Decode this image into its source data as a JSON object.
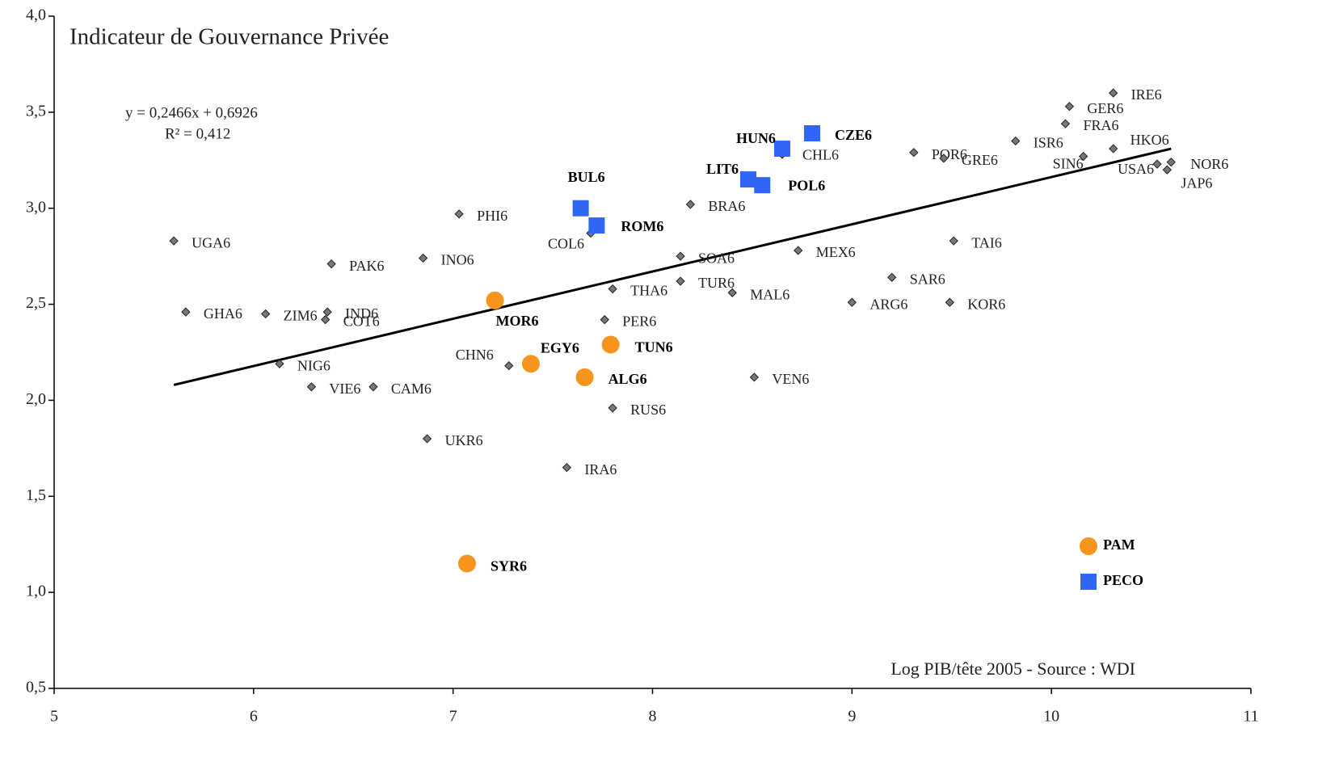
{
  "chart_data": {
    "type": "scatter",
    "title": "Indicateur de Gouvernance Privée",
    "x_label": "Log PIB/tête 2005 - Source : WDI",
    "annotations": [
      "y = 0,2466x + 0,6926",
      "R² = 0,412"
    ],
    "xlim": [
      5,
      11
    ],
    "xticks": [
      5,
      6,
      7,
      8,
      9,
      10,
      11
    ],
    "ylim": [
      0.5,
      4.0
    ],
    "yticks": [
      {
        "value": 0.5,
        "label": "0,5"
      },
      {
        "value": 1.0,
        "label": "1,0"
      },
      {
        "value": 1.5,
        "label": "1,5"
      },
      {
        "value": 2.0,
        "label": "2,0"
      },
      {
        "value": 2.5,
        "label": "2,5"
      },
      {
        "value": 3.0,
        "label": "3,0"
      },
      {
        "value": 3.5,
        "label": "3,5"
      },
      {
        "value": 4.0,
        "label": "4,0"
      }
    ],
    "legend": "lower right",
    "trendline": {
      "color": "#000000",
      "x": [
        5.6,
        10.6
      ],
      "y": [
        2.08,
        3.31
      ]
    },
    "series": [
      {
        "marker": "diamond",
        "color": "#777777",
        "labels": [
          "UGA6",
          "GHA6",
          "ZIM6",
          "IND6",
          "COT6",
          "PAK6",
          "INO6",
          "PHI6",
          "NIG6",
          "VIE6",
          "CAM6",
          "UKR6",
          "CHN6",
          "IRA6",
          "COL6",
          "THA6",
          "PER6",
          "RUS6",
          "SOA6",
          "TUR6",
          "BRA6",
          "MAL6",
          "VEN6",
          "MEX6",
          "CHL6",
          "ARG6",
          "SAR6",
          "KOR6",
          "TAI6",
          "POR6",
          "GRE6",
          "ISR6",
          "FRA6",
          "GER6",
          "IRE6",
          "HKO6",
          "SIN6",
          "USA6",
          "JAP6",
          "NOR6"
        ],
        "x": [
          5.6,
          5.66,
          6.06,
          6.37,
          6.36,
          6.39,
          6.85,
          7.03,
          6.13,
          6.29,
          6.6,
          6.87,
          7.28,
          7.57,
          7.69,
          7.8,
          7.76,
          7.8,
          8.14,
          8.14,
          8.19,
          8.4,
          8.51,
          8.73,
          8.65,
          9.0,
          9.2,
          9.49,
          9.51,
          9.31,
          9.46,
          9.82,
          10.07,
          10.09,
          10.31,
          10.31,
          10.16,
          10.53,
          10.58,
          10.6
        ],
        "values": [
          2.83,
          2.46,
          2.45,
          2.46,
          2.42,
          2.71,
          2.74,
          2.97,
          2.19,
          2.07,
          2.07,
          1.8,
          2.18,
          1.65,
          2.87,
          2.58,
          2.42,
          1.96,
          2.75,
          2.62,
          3.02,
          2.56,
          2.12,
          2.78,
          3.28,
          2.51,
          2.64,
          2.51,
          2.83,
          3.29,
          3.26,
          3.35,
          3.44,
          3.53,
          3.6,
          3.31,
          3.27,
          3.23,
          3.2,
          3.24
        ]
      },
      {
        "name": "PAM",
        "marker": "circle",
        "color": "#f7941d",
        "labels": [
          "MOR6",
          "EGY6",
          "TUN6",
          "ALG6",
          "SYR6"
        ],
        "x": [
          7.21,
          7.39,
          7.79,
          7.66,
          7.07
        ],
        "values": [
          2.52,
          2.19,
          2.29,
          2.12,
          1.15
        ]
      },
      {
        "name": "PECO",
        "marker": "square",
        "color": "#2f66f5",
        "labels": [
          "BUL6",
          "ROM6",
          "HUN6",
          "CZE6",
          "LIT6",
          "POL6"
        ],
        "x": [
          7.64,
          7.72,
          8.65,
          8.8,
          8.48,
          8.55
        ],
        "values": [
          3.0,
          2.91,
          3.31,
          3.39,
          3.15,
          3.12
        ]
      }
    ]
  }
}
